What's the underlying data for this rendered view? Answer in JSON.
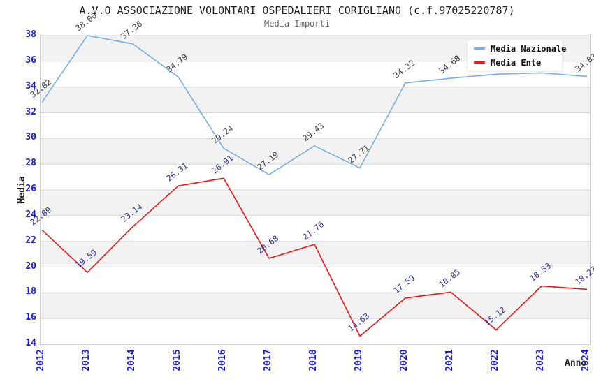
{
  "chart_data": {
    "type": "line",
    "title": "A.V.O ASSOCIAZIONE VOLONTARI OSPEDALIERI CORIGLIANO (c.f.97025220787)",
    "subtitle": "Media Importi",
    "xlabel": "Anno",
    "ylabel": "Media",
    "categories": [
      "2012",
      "2013",
      "2014",
      "2015",
      "2016",
      "2017",
      "2018",
      "2019",
      "2020",
      "2021",
      "2022",
      "2023",
      "2024"
    ],
    "series": [
      {
        "name": "Media Nazionale",
        "color": "#78b0e2",
        "label_color": "#3d3d3d",
        "values": [
          32.82,
          38.0,
          37.36,
          34.79,
          29.24,
          27.19,
          29.43,
          27.71,
          34.32,
          34.68,
          35.0,
          35.1,
          34.83
        ],
        "labels": [
          "32.82",
          "38.00",
          "37.36",
          "34.79",
          "29.24",
          "27.19",
          "29.43",
          "27.71",
          "34.32",
          "34.68",
          null,
          null,
          "34.83"
        ]
      },
      {
        "name": "Media Ente",
        "color": "#ee1515",
        "label_color": "#333399",
        "values": [
          22.89,
          19.59,
          23.14,
          26.31,
          26.91,
          20.68,
          21.76,
          14.63,
          17.59,
          18.05,
          15.12,
          18.53,
          18.27
        ],
        "labels": [
          "22.89",
          "19.59",
          "23.14",
          "26.31",
          "26.91",
          "20.68",
          "21.76",
          "14.63",
          "17.59",
          "18.05",
          "15.12",
          "18.53",
          "18.27"
        ]
      }
    ],
    "ylim": [
      14,
      38
    ],
    "ytick_step": 2,
    "yticks": [
      38,
      36,
      34,
      32,
      30,
      28,
      26,
      24,
      22,
      20,
      18,
      16,
      14
    ],
    "grid": "horizontal lines with alternating shaded bands",
    "band_colors": [
      "#f2f2f2",
      "#ffffff"
    ],
    "gridline_color": "#d6d6d6",
    "tick_label_color": "#1a1ae0",
    "legend_position": "top-right",
    "legend_items": [
      "Media Nazionale",
      "Media Ente"
    ]
  }
}
